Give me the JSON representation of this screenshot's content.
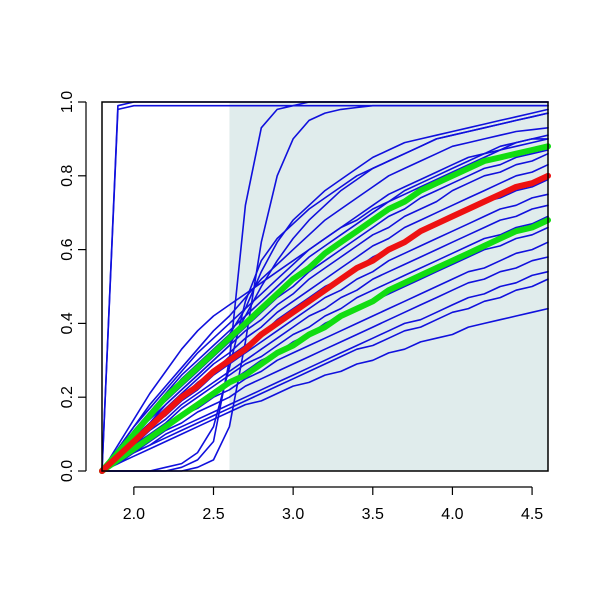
{
  "chart_data": {
    "type": "line",
    "title": "",
    "xlabel": "",
    "ylabel": "",
    "xlim": [
      1.8,
      4.6
    ],
    "ylim": [
      0.0,
      1.0
    ],
    "x_ticks": [
      {
        "value": 2.0,
        "label": "2.0"
      },
      {
        "value": 2.5,
        "label": "2.5"
      },
      {
        "value": 3.0,
        "label": "3.0"
      },
      {
        "value": 3.5,
        "label": "3.5"
      },
      {
        "value": 4.0,
        "label": "4.0"
      },
      {
        "value": 4.5,
        "label": "4.5"
      }
    ],
    "y_ticks": [
      {
        "value": 0.0,
        "label": "0.0"
      },
      {
        "value": 0.2,
        "label": "0.2"
      },
      {
        "value": 0.4,
        "label": "0.4"
      },
      {
        "value": 0.6,
        "label": "0.6"
      },
      {
        "value": 0.8,
        "label": "0.8"
      },
      {
        "value": 1.0,
        "label": "1.0"
      }
    ],
    "grid": false,
    "legend": "none",
    "shaded_region": {
      "x_from": 2.6,
      "x_to": 4.6,
      "y_from": 0.0,
      "y_to": 1.0,
      "color": "#e0ecec"
    },
    "colors": {
      "sample": "#1010dd",
      "median": "#ee1111",
      "band": "#11dd11",
      "axis": "#000000"
    },
    "x": [
      1.8,
      1.9,
      2.0,
      2.1,
      2.2,
      2.3,
      2.4,
      2.5,
      2.6,
      2.7,
      2.8,
      2.9,
      3.0,
      3.1,
      3.2,
      3.3,
      3.4,
      3.5,
      3.6,
      3.7,
      3.8,
      3.9,
      4.0,
      4.1,
      4.2,
      4.3,
      4.4,
      4.5,
      4.6
    ],
    "series": [
      {
        "role": "sample",
        "values": [
          0.0,
          0.98,
          0.99,
          0.99,
          0.99,
          0.99,
          0.99,
          0.99,
          0.99,
          0.99,
          0.99,
          0.99,
          0.99,
          0.99,
          0.99,
          0.99,
          0.99,
          0.99,
          0.99,
          0.99,
          0.99,
          0.99,
          0.99,
          0.99,
          0.99,
          0.99,
          0.99,
          0.99,
          0.99
        ]
      },
      {
        "role": "sample",
        "values": [
          0.0,
          0.99,
          1.0,
          1.0,
          1.0,
          1.0,
          1.0,
          1.0,
          1.0,
          1.0,
          1.0,
          1.0,
          1.0,
          1.0,
          1.0,
          1.0,
          1.0,
          1.0,
          1.0,
          1.0,
          1.0,
          1.0,
          1.0,
          1.0,
          1.0,
          1.0,
          1.0,
          1.0,
          1.0
        ]
      },
      {
        "role": "sample",
        "values": [
          0.0,
          0.0,
          0.0,
          0.0,
          0.0,
          0.01,
          0.03,
          0.08,
          0.3,
          0.72,
          0.93,
          0.98,
          0.99,
          1.0,
          1.0,
          1.0,
          1.0,
          1.0,
          1.0,
          1.0,
          1.0,
          1.0,
          1.0,
          1.0,
          1.0,
          1.0,
          1.0,
          1.0,
          1.0
        ]
      },
      {
        "role": "sample",
        "values": [
          0.0,
          0.0,
          0.0,
          0.0,
          0.0,
          0.0,
          0.01,
          0.03,
          0.12,
          0.35,
          0.62,
          0.8,
          0.9,
          0.95,
          0.97,
          0.98,
          0.985,
          0.99,
          0.99,
          0.99,
          0.99,
          0.99,
          0.99,
          0.99,
          0.99,
          0.99,
          0.99,
          0.99,
          0.99
        ]
      },
      {
        "role": "sample",
        "values": [
          0.0,
          0.05,
          0.1,
          0.15,
          0.2,
          0.25,
          0.29,
          0.33,
          0.37,
          0.44,
          0.54,
          0.62,
          0.68,
          0.72,
          0.76,
          0.79,
          0.82,
          0.85,
          0.87,
          0.89,
          0.9,
          0.91,
          0.92,
          0.93,
          0.94,
          0.95,
          0.96,
          0.97,
          0.98
        ]
      },
      {
        "role": "sample",
        "values": [
          0.0,
          0.04,
          0.09,
          0.13,
          0.18,
          0.22,
          0.26,
          0.3,
          0.34,
          0.42,
          0.5,
          0.57,
          0.63,
          0.68,
          0.72,
          0.76,
          0.79,
          0.82,
          0.84,
          0.86,
          0.88,
          0.9,
          0.91,
          0.92,
          0.93,
          0.94,
          0.95,
          0.96,
          0.97
        ]
      },
      {
        "role": "sample",
        "values": [
          0.0,
          0.06,
          0.12,
          0.18,
          0.23,
          0.28,
          0.33,
          0.38,
          0.42,
          0.47,
          0.52,
          0.56,
          0.6,
          0.64,
          0.68,
          0.71,
          0.74,
          0.77,
          0.8,
          0.82,
          0.84,
          0.86,
          0.88,
          0.89,
          0.9,
          0.91,
          0.92,
          0.925,
          0.93
        ]
      },
      {
        "role": "sample",
        "values": [
          0.0,
          0.05,
          0.11,
          0.16,
          0.21,
          0.26,
          0.3,
          0.34,
          0.38,
          0.42,
          0.46,
          0.5,
          0.54,
          0.58,
          0.61,
          0.64,
          0.67,
          0.7,
          0.73,
          0.76,
          0.78,
          0.8,
          0.82,
          0.84,
          0.86,
          0.87,
          0.89,
          0.9,
          0.91
        ]
      },
      {
        "role": "sample",
        "values": [
          0.0,
          0.06,
          0.12,
          0.17,
          0.22,
          0.27,
          0.32,
          0.36,
          0.4,
          0.44,
          0.48,
          0.52,
          0.56,
          0.6,
          0.63,
          0.66,
          0.69,
          0.72,
          0.75,
          0.77,
          0.79,
          0.81,
          0.83,
          0.85,
          0.86,
          0.88,
          0.89,
          0.9,
          0.9
        ]
      },
      {
        "role": "sample",
        "values": [
          0.0,
          0.05,
          0.1,
          0.15,
          0.19,
          0.23,
          0.27,
          0.31,
          0.35,
          0.39,
          0.43,
          0.47,
          0.5,
          0.54,
          0.57,
          0.6,
          0.63,
          0.66,
          0.69,
          0.71,
          0.74,
          0.76,
          0.78,
          0.8,
          0.82,
          0.83,
          0.85,
          0.86,
          0.87
        ]
      },
      {
        "role": "sample",
        "values": [
          0.0,
          0.05,
          0.1,
          0.14,
          0.18,
          0.22,
          0.26,
          0.3,
          0.34,
          0.38,
          0.41,
          0.45,
          0.48,
          0.52,
          0.55,
          0.58,
          0.61,
          0.64,
          0.66,
          0.69,
          0.71,
          0.73,
          0.76,
          0.78,
          0.8,
          0.81,
          0.83,
          0.84,
          0.86
        ]
      },
      {
        "role": "sample",
        "values": [
          0.0,
          0.04,
          0.09,
          0.13,
          0.17,
          0.21,
          0.25,
          0.29,
          0.32,
          0.36,
          0.39,
          0.43,
          0.46,
          0.49,
          0.52,
          0.55,
          0.58,
          0.61,
          0.63,
          0.66,
          0.68,
          0.7,
          0.72,
          0.74,
          0.76,
          0.78,
          0.8,
          0.81,
          0.83
        ]
      },
      {
        "role": "sample",
        "values": [
          0.0,
          0.04,
          0.08,
          0.12,
          0.16,
          0.2,
          0.24,
          0.27,
          0.31,
          0.34,
          0.37,
          0.41,
          0.44,
          0.47,
          0.5,
          0.52,
          0.55,
          0.58,
          0.6,
          0.62,
          0.65,
          0.67,
          0.69,
          0.71,
          0.73,
          0.74,
          0.76,
          0.77,
          0.79
        ]
      },
      {
        "role": "sample",
        "values": [
          0.0,
          0.04,
          0.08,
          0.12,
          0.15,
          0.19,
          0.22,
          0.26,
          0.29,
          0.32,
          0.35,
          0.38,
          0.41,
          0.44,
          0.47,
          0.49,
          0.52,
          0.54,
          0.57,
          0.59,
          0.61,
          0.63,
          0.65,
          0.67,
          0.69,
          0.71,
          0.72,
          0.74,
          0.75
        ]
      },
      {
        "role": "sample",
        "values": [
          0.0,
          0.04,
          0.07,
          0.11,
          0.14,
          0.18,
          0.21,
          0.24,
          0.27,
          0.3,
          0.33,
          0.36,
          0.39,
          0.42,
          0.44,
          0.47,
          0.49,
          0.52,
          0.54,
          0.56,
          0.58,
          0.6,
          0.62,
          0.64,
          0.66,
          0.68,
          0.69,
          0.71,
          0.72
        ]
      },
      {
        "role": "sample",
        "values": [
          0.0,
          0.03,
          0.07,
          0.1,
          0.13,
          0.17,
          0.2,
          0.23,
          0.26,
          0.29,
          0.31,
          0.34,
          0.37,
          0.39,
          0.42,
          0.44,
          0.47,
          0.49,
          0.51,
          0.53,
          0.55,
          0.57,
          0.59,
          0.61,
          0.63,
          0.64,
          0.66,
          0.67,
          0.69
        ]
      },
      {
        "role": "sample",
        "values": [
          0.0,
          0.03,
          0.06,
          0.09,
          0.12,
          0.15,
          0.18,
          0.21,
          0.24,
          0.27,
          0.3,
          0.32,
          0.35,
          0.37,
          0.4,
          0.42,
          0.44,
          0.46,
          0.48,
          0.5,
          0.52,
          0.54,
          0.56,
          0.58,
          0.6,
          0.61,
          0.63,
          0.64,
          0.66
        ]
      },
      {
        "role": "sample",
        "values": [
          0.0,
          0.03,
          0.06,
          0.09,
          0.12,
          0.15,
          0.17,
          0.2,
          0.22,
          0.25,
          0.27,
          0.3,
          0.32,
          0.34,
          0.36,
          0.38,
          0.4,
          0.42,
          0.44,
          0.46,
          0.48,
          0.5,
          0.52,
          0.54,
          0.55,
          0.57,
          0.59,
          0.6,
          0.62
        ]
      },
      {
        "role": "sample",
        "values": [
          0.0,
          0.03,
          0.05,
          0.08,
          0.11,
          0.13,
          0.16,
          0.18,
          0.2,
          0.23,
          0.25,
          0.27,
          0.29,
          0.31,
          0.33,
          0.35,
          0.37,
          0.39,
          0.41,
          0.43,
          0.45,
          0.47,
          0.49,
          0.51,
          0.52,
          0.54,
          0.55,
          0.57,
          0.58
        ]
      },
      {
        "role": "sample",
        "values": [
          0.0,
          0.03,
          0.05,
          0.07,
          0.1,
          0.12,
          0.14,
          0.16,
          0.18,
          0.2,
          0.22,
          0.24,
          0.26,
          0.28,
          0.3,
          0.32,
          0.34,
          0.36,
          0.38,
          0.4,
          0.41,
          0.43,
          0.45,
          0.47,
          0.48,
          0.5,
          0.51,
          0.53,
          0.54
        ]
      },
      {
        "role": "sample",
        "values": [
          0.0,
          0.02,
          0.05,
          0.07,
          0.09,
          0.11,
          0.13,
          0.15,
          0.17,
          0.19,
          0.21,
          0.23,
          0.25,
          0.27,
          0.29,
          0.31,
          0.33,
          0.34,
          0.36,
          0.38,
          0.39,
          0.41,
          0.43,
          0.44,
          0.46,
          0.47,
          0.49,
          0.5,
          0.52
        ]
      },
      {
        "role": "sample",
        "values": [
          0.0,
          0.02,
          0.04,
          0.06,
          0.08,
          0.1,
          0.12,
          0.14,
          0.16,
          0.18,
          0.19,
          0.21,
          0.23,
          0.24,
          0.26,
          0.27,
          0.29,
          0.3,
          0.32,
          0.33,
          0.35,
          0.36,
          0.37,
          0.39,
          0.4,
          0.41,
          0.42,
          0.43,
          0.44
        ]
      },
      {
        "role": "sample",
        "values": [
          0.0,
          0.07,
          0.14,
          0.21,
          0.27,
          0.33,
          0.38,
          0.42,
          0.45,
          0.48,
          0.51,
          0.54,
          0.57,
          0.6,
          0.63,
          0.66,
          0.68,
          0.71,
          0.73,
          0.75,
          0.77,
          0.79,
          0.81,
          0.83,
          0.85,
          0.87,
          0.88,
          0.89,
          0.9
        ]
      },
      {
        "role": "sample",
        "values": [
          0.0,
          0.0,
          0.0,
          0.0,
          0.01,
          0.02,
          0.05,
          0.12,
          0.28,
          0.46,
          0.57,
          0.63,
          0.67,
          0.71,
          0.74,
          0.77,
          0.8,
          0.82,
          0.84,
          0.86,
          0.88,
          0.9,
          0.91,
          0.92,
          0.93,
          0.94,
          0.95,
          0.96,
          0.97
        ]
      },
      {
        "role": "band",
        "values": [
          0.0,
          0.05,
          0.1,
          0.15,
          0.2,
          0.24,
          0.28,
          0.32,
          0.36,
          0.4,
          0.44,
          0.48,
          0.52,
          0.55,
          0.59,
          0.62,
          0.65,
          0.68,
          0.71,
          0.73,
          0.76,
          0.78,
          0.8,
          0.82,
          0.84,
          0.85,
          0.86,
          0.87,
          0.88
        ]
      },
      {
        "role": "band",
        "values": [
          0.0,
          0.03,
          0.06,
          0.09,
          0.12,
          0.15,
          0.18,
          0.21,
          0.24,
          0.26,
          0.29,
          0.32,
          0.34,
          0.37,
          0.39,
          0.42,
          0.44,
          0.46,
          0.49,
          0.51,
          0.53,
          0.55,
          0.57,
          0.59,
          0.61,
          0.63,
          0.65,
          0.66,
          0.68
        ]
      },
      {
        "role": "median",
        "values": [
          0.0,
          0.04,
          0.08,
          0.12,
          0.16,
          0.2,
          0.23,
          0.27,
          0.3,
          0.33,
          0.37,
          0.4,
          0.43,
          0.46,
          0.49,
          0.52,
          0.55,
          0.57,
          0.6,
          0.62,
          0.65,
          0.67,
          0.69,
          0.71,
          0.73,
          0.75,
          0.77,
          0.78,
          0.8
        ]
      }
    ]
  }
}
